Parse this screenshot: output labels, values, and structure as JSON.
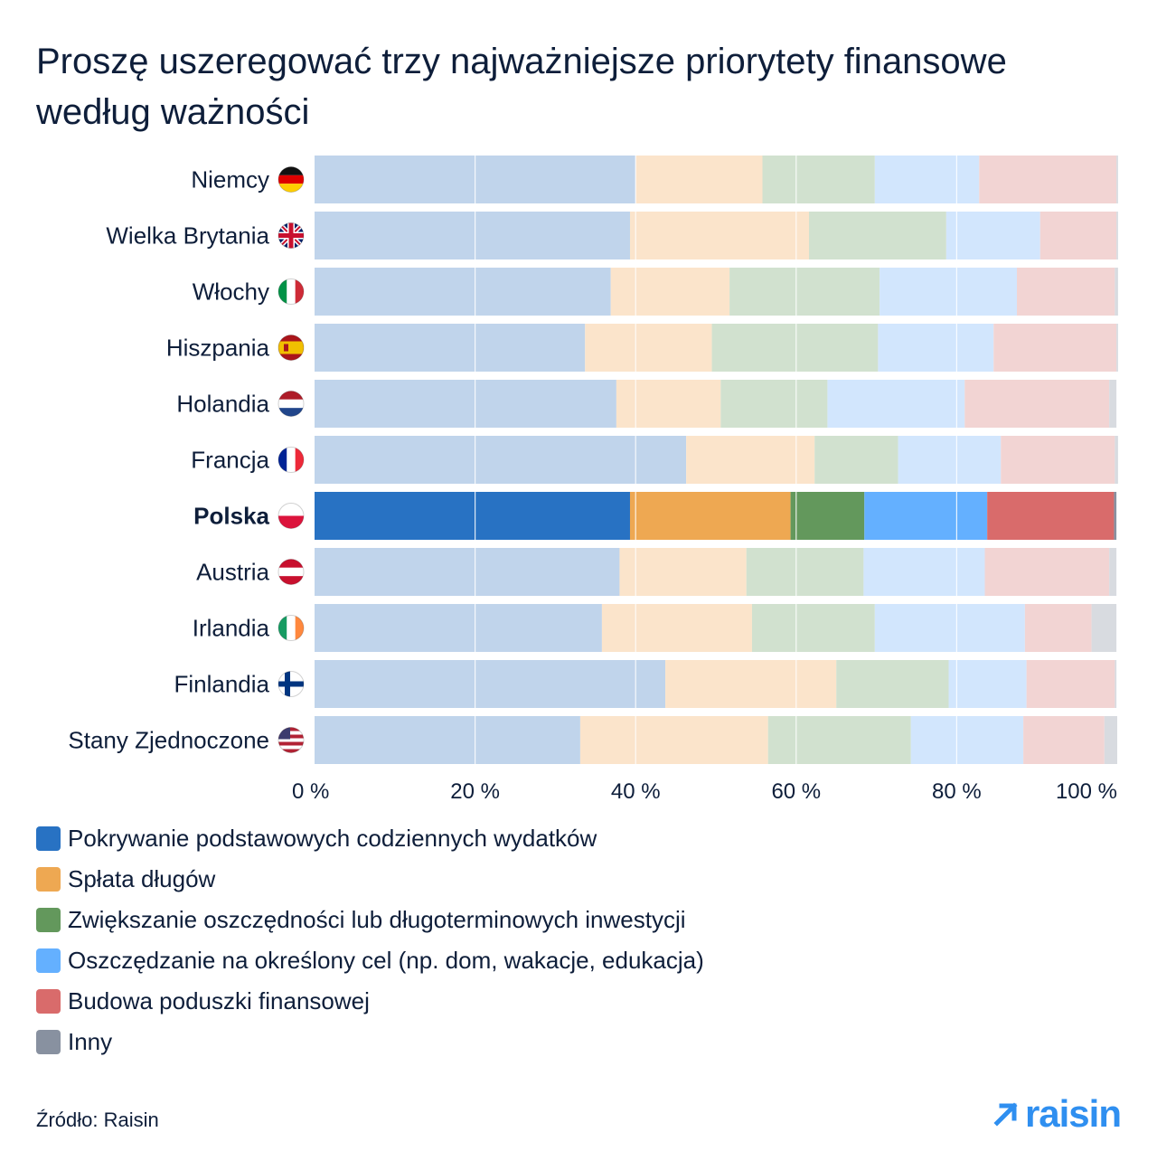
{
  "title": "Proszę uszeregować trzy najważniejsze priorytety finansowe według ważności",
  "source": "Źródło: Raisin",
  "brand": "raisin",
  "colors": {
    "strong": [
      "#2872c3",
      "#eea852",
      "#63985c",
      "#64b0ff",
      "#d96b6b",
      "#8891a0"
    ],
    "muted": [
      "#c0d4eb",
      "#fbe4cb",
      "#d1e1cf",
      "#d2e6fd",
      "#f2d4d3",
      "#d8dbe0"
    ],
    "text": "#0e1e3a",
    "brand": "#2f8ff0"
  },
  "chart_data": {
    "type": "bar",
    "orientation": "horizontal",
    "stacked": true,
    "xlim": [
      0,
      100
    ],
    "xticks": [
      0,
      20,
      40,
      60,
      80,
      100
    ],
    "xtick_labels": [
      "0 %",
      "20 %",
      "40 %",
      "60 %",
      "80 %",
      "100 %"
    ],
    "grid": true,
    "legend_position": "bottom",
    "highlight": "Polska",
    "categories": [
      {
        "label": "Niemcy",
        "flag": "de-flag-icon"
      },
      {
        "label": "Wielka Brytania",
        "flag": "gb-flag-icon"
      },
      {
        "label": "Włochy",
        "flag": "it-flag-icon"
      },
      {
        "label": "Hiszpania",
        "flag": "es-flag-icon"
      },
      {
        "label": "Holandia",
        "flag": "nl-flag-icon"
      },
      {
        "label": "Francja",
        "flag": "fr-flag-icon"
      },
      {
        "label": "Polska",
        "flag": "pl-flag-icon"
      },
      {
        "label": "Austria",
        "flag": "at-flag-icon"
      },
      {
        "label": "Irlandia",
        "flag": "ie-flag-icon"
      },
      {
        "label": "Finlandia",
        "flag": "fi-flag-icon"
      },
      {
        "label": "Stany Zjednoczone",
        "flag": "us-flag-icon"
      }
    ],
    "series": [
      {
        "name": "Pokrywanie podstawowych codziennych wydatków",
        "values": [
          40,
          39.3,
          36.9,
          33.7,
          37.6,
          46.3,
          39.3,
          38.0,
          35.8,
          43.7,
          33.1
        ]
      },
      {
        "name": "Spłata długów",
        "values": [
          15.8,
          22.3,
          14.8,
          15.8,
          13.0,
          16.0,
          20.0,
          15.8,
          18.7,
          21.3,
          23.4
        ]
      },
      {
        "name": "Zwiększanie oszczędności lub długoterminowych inwestycji",
        "values": [
          14.0,
          17.1,
          18.7,
          20.7,
          13.3,
          10.4,
          9.2,
          14.6,
          15.3,
          14.0,
          17.8
        ]
      },
      {
        "name": "Oszczędzanie na określony cel (np. dom, wakacje, edukacja)",
        "values": [
          13.0,
          11.7,
          17.1,
          14.4,
          17.1,
          12.8,
          15.3,
          15.1,
          18.7,
          9.7,
          14.0
        ]
      },
      {
        "name": "Budowa poduszki finansowej",
        "values": [
          17.1,
          9.5,
          12.2,
          15.3,
          18.0,
          14.2,
          15.8,
          15.5,
          8.3,
          11.0,
          10.1
        ]
      },
      {
        "name": "Inny",
        "values": [
          0.2,
          0.2,
          0.4,
          0.2,
          0.9,
          0.4,
          0.3,
          0.9,
          3.1,
          0.2,
          1.6
        ]
      }
    ]
  }
}
